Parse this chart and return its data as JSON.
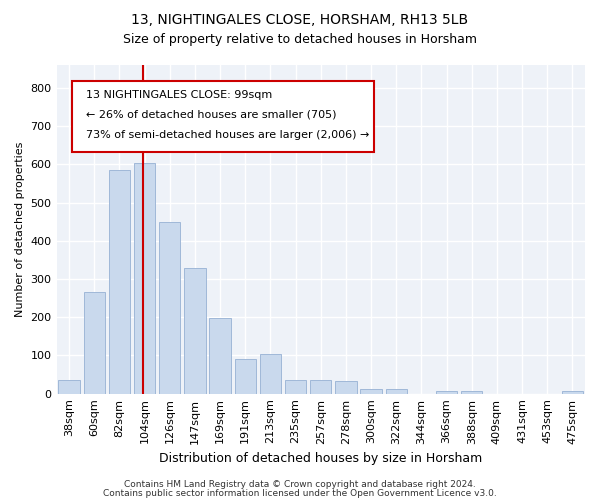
{
  "title1": "13, NIGHTINGALES CLOSE, HORSHAM, RH13 5LB",
  "title2": "Size of property relative to detached houses in Horsham",
  "xlabel": "Distribution of detached houses by size in Horsham",
  "ylabel": "Number of detached properties",
  "categories": [
    "38sqm",
    "60sqm",
    "82sqm",
    "104sqm",
    "126sqm",
    "147sqm",
    "169sqm",
    "191sqm",
    "213sqm",
    "235sqm",
    "257sqm",
    "278sqm",
    "300sqm",
    "322sqm",
    "344sqm",
    "366sqm",
    "388sqm",
    "409sqm",
    "431sqm",
    "453sqm",
    "475sqm"
  ],
  "values": [
    35,
    265,
    585,
    603,
    450,
    328,
    197,
    90,
    103,
    37,
    35,
    32,
    13,
    13,
    0,
    8,
    8,
    0,
    0,
    0,
    8
  ],
  "bar_color": "#c9d9ed",
  "bar_edgecolor": "#a0b8d8",
  "vline_color": "#cc0000",
  "annotation_box_color": "#cc0000",
  "annotation_text_line1": "13 NIGHTINGALES CLOSE: 99sqm",
  "annotation_text_line2": "← 26% of detached houses are smaller (705)",
  "annotation_text_line3": "73% of semi-detached houses are larger (2,006) →",
  "ylim": [
    0,
    860
  ],
  "yticks": [
    0,
    100,
    200,
    300,
    400,
    500,
    600,
    700,
    800
  ],
  "background_color": "#eef2f8",
  "grid_color": "#ffffff",
  "footer_line1": "Contains HM Land Registry data © Crown copyright and database right 2024.",
  "footer_line2": "Contains public sector information licensed under the Open Government Licence v3.0."
}
